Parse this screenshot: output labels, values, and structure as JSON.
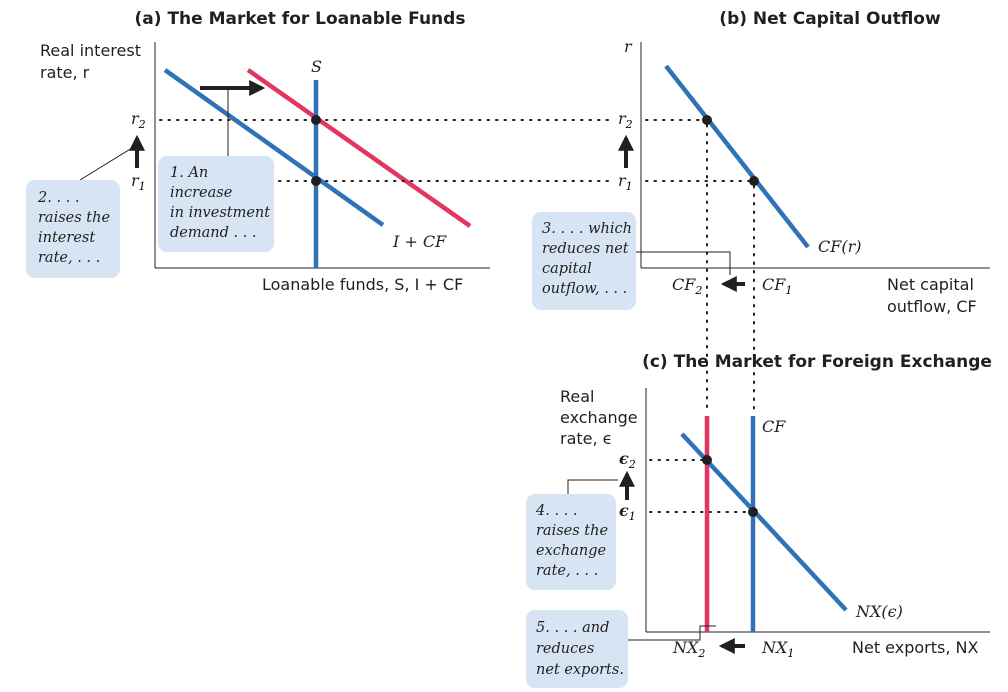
{
  "panel_a": {
    "title": "(a) The Market for Loanable Funds",
    "y_label_line1": "Real interest",
    "y_label_line2": "rate, r",
    "x_label": "Loanable funds, S, I + CF",
    "supply_label": "S",
    "demand_label": "I + CF",
    "tick_high": "r",
    "tick_high_sub": "2",
    "tick_low": "r",
    "tick_low_sub": "1",
    "note1": [
      "1. An",
      "increase",
      "in investment",
      "demand . . ."
    ],
    "note2": [
      "2. . . .",
      "raises the",
      "interest",
      "rate, . . ."
    ]
  },
  "panel_b": {
    "title": "(b) Net Capital Outflow",
    "y_label": "r",
    "x_label_line1": "Net capital",
    "x_label_line2": "outflow, CF",
    "curve_label": "CF(r)",
    "tick_high": "r",
    "tick_high_sub": "2",
    "tick_low": "r",
    "tick_low_sub": "1",
    "x_tick_left": "CF",
    "x_tick_left_sub": "2",
    "x_tick_right": "CF",
    "x_tick_right_sub": "1",
    "note3": [
      "3. . . . which",
      "reduces net",
      "capital",
      "outflow, . . ."
    ]
  },
  "panel_c": {
    "title": "(c) The Market for Foreign Exchange",
    "y_label_line1": "Real",
    "y_label_line2": "exchange",
    "y_label_line3": "rate, ϵ",
    "x_label": "Net exports, NX",
    "supply_label": "CF",
    "demand_label": "NX(ϵ)",
    "tick_high": "ϵ",
    "tick_high_sub": "2",
    "tick_low": "ϵ",
    "tick_low_sub": "1",
    "x_tick_left": "NX",
    "x_tick_left_sub": "2",
    "x_tick_right": "NX",
    "x_tick_right_sub": "1",
    "note4": [
      "4. . . .",
      "raises the",
      "exchange",
      "rate, . . ."
    ],
    "note5": [
      "5. . . . and",
      "reduces",
      "net exports."
    ]
  },
  "colors": {
    "original_curves": "#2f72b7",
    "shifted_curves": "#e2355f",
    "note_boxes": "#d6e4f3"
  }
}
